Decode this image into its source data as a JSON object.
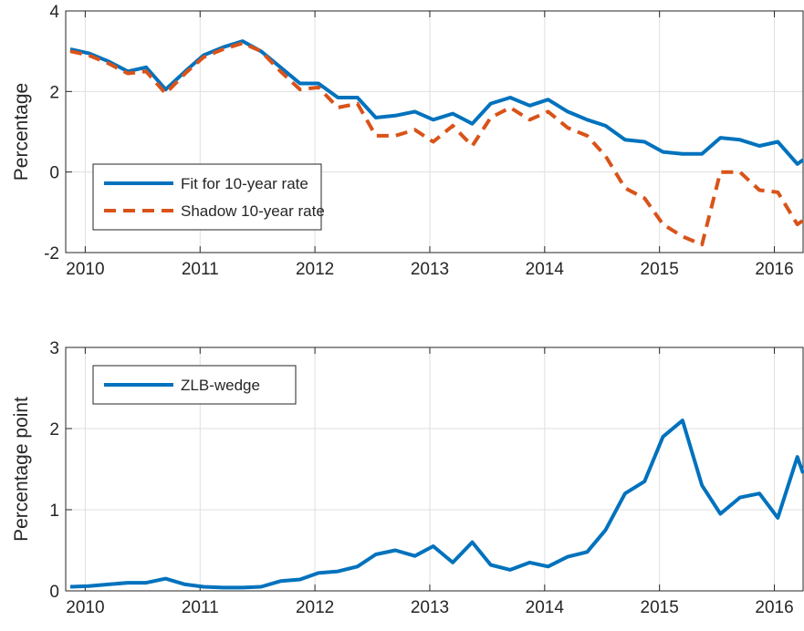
{
  "chart_data": [
    {
      "type": "line",
      "y_label": "Percentage",
      "x": [
        2009.87,
        2010.03,
        2010.2,
        2010.37,
        2010.53,
        2010.7,
        2010.87,
        2011.03,
        2011.2,
        2011.37,
        2011.53,
        2011.7,
        2011.87,
        2012.03,
        2012.2,
        2012.37,
        2012.53,
        2012.7,
        2012.87,
        2013.03,
        2013.2,
        2013.37,
        2013.53,
        2013.7,
        2013.87,
        2014.03,
        2014.2,
        2014.37,
        2014.53,
        2014.7,
        2014.87,
        2015.03,
        2015.2,
        2015.37,
        2015.53,
        2015.7,
        2015.87,
        2016.03,
        2016.2,
        2016.25
      ],
      "series": [
        {
          "name": "Fit for 10-year rate",
          "color": "#0072BD",
          "dashed": false,
          "values": [
            3.05,
            2.95,
            2.75,
            2.5,
            2.6,
            2.05,
            2.5,
            2.9,
            3.1,
            3.25,
            3.0,
            2.6,
            2.2,
            2.2,
            1.85,
            1.85,
            1.35,
            1.4,
            1.5,
            1.3,
            1.45,
            1.2,
            1.7,
            1.85,
            1.65,
            1.8,
            1.5,
            1.3,
            1.15,
            0.8,
            0.75,
            0.5,
            0.45,
            0.45,
            0.85,
            0.8,
            0.65,
            0.75,
            0.2,
            0.3
          ]
        },
        {
          "name": "Shadow 10-year rate",
          "color": "#D95319",
          "dashed": true,
          "values": [
            3.0,
            2.9,
            2.7,
            2.45,
            2.5,
            1.95,
            2.45,
            2.85,
            3.05,
            3.2,
            3.0,
            2.5,
            2.05,
            2.1,
            1.6,
            1.7,
            0.9,
            0.9,
            1.05,
            0.75,
            1.15,
            0.65,
            1.35,
            1.6,
            1.3,
            1.5,
            1.1,
            0.9,
            0.4,
            -0.4,
            -0.65,
            -1.3,
            -1.6,
            -1.8,
            0.0,
            0.0,
            -0.45,
            -0.5,
            -1.3,
            -1.2
          ]
        }
      ],
      "xlim": [
        2009.83,
        2016.25
      ],
      "xticks": [
        2010,
        2011,
        2012,
        2013,
        2014,
        2015,
        2016
      ],
      "ylim": [
        -2,
        4
      ],
      "yticks": [
        -2,
        0,
        2,
        4
      ],
      "grid": true,
      "legend": "lower-left"
    },
    {
      "type": "line",
      "y_label": "Percentage point",
      "x": [
        2009.87,
        2010.03,
        2010.2,
        2010.37,
        2010.53,
        2010.7,
        2010.87,
        2011.03,
        2011.2,
        2011.37,
        2011.53,
        2011.7,
        2011.87,
        2012.03,
        2012.2,
        2012.37,
        2012.53,
        2012.7,
        2012.87,
        2013.03,
        2013.2,
        2013.37,
        2013.53,
        2013.7,
        2013.87,
        2014.03,
        2014.2,
        2014.37,
        2014.53,
        2014.7,
        2014.87,
        2015.03,
        2015.2,
        2015.37,
        2015.53,
        2015.7,
        2015.87,
        2016.03,
        2016.2,
        2016.25
      ],
      "series": [
        {
          "name": "ZLB-wedge",
          "color": "#0072BD",
          "dashed": false,
          "values": [
            0.05,
            0.06,
            0.08,
            0.1,
            0.1,
            0.15,
            0.08,
            0.05,
            0.04,
            0.04,
            0.05,
            0.12,
            0.14,
            0.22,
            0.24,
            0.3,
            0.45,
            0.5,
            0.43,
            0.55,
            0.35,
            0.6,
            0.32,
            0.26,
            0.35,
            0.3,
            0.42,
            0.48,
            0.75,
            1.2,
            1.35,
            1.9,
            2.1,
            1.3,
            0.95,
            1.15,
            1.2,
            0.9,
            1.65,
            1.45
          ]
        }
      ],
      "xlim": [
        2009.83,
        2016.25
      ],
      "xticks": [
        2010,
        2011,
        2012,
        2013,
        2014,
        2015,
        2016
      ],
      "ylim": [
        0,
        3
      ],
      "yticks": [
        0,
        1,
        2,
        3
      ],
      "grid": true,
      "legend": "upper-left"
    }
  ]
}
